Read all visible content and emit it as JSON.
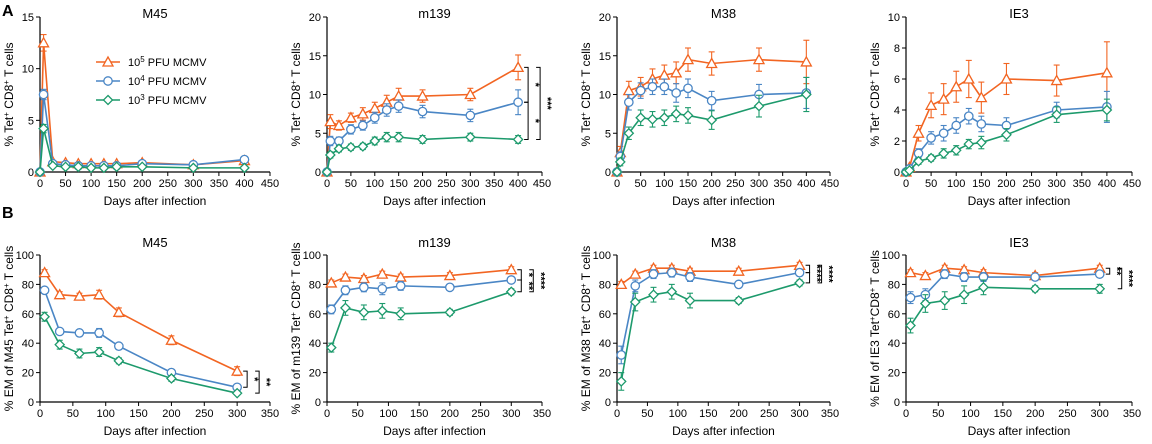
{
  "panel_labels": [
    "A",
    "B"
  ],
  "colors": {
    "high": "#f26522",
    "mid": "#4a86c5",
    "low": "#1d9a6c"
  },
  "legend": {
    "entries": [
      {
        "base": "10",
        "exp": "5",
        "suffix": " PFU MCMV",
        "series": "high",
        "marker": "triangle"
      },
      {
        "base": "10",
        "exp": "4",
        "suffix": " PFU MCMV",
        "series": "mid",
        "marker": "circle"
      },
      {
        "base": "10",
        "exp": "3",
        "suffix": " PFU MCMV",
        "series": "low",
        "marker": "diamond"
      }
    ]
  },
  "chart_data": [
    {
      "type": "line",
      "title": "M45",
      "xlabel": "Days after infection",
      "ylabel": {
        "pre": "% Tet",
        "sup1": "+",
        "mid": " CD8",
        "sup2": "+",
        "post": " T cells"
      },
      "xlim": [
        0,
        450
      ],
      "xticks": [
        0,
        50,
        100,
        150,
        200,
        250,
        300,
        350,
        400,
        450
      ],
      "ylim": [
        0,
        15
      ],
      "yticks": [
        0,
        5,
        10,
        15
      ],
      "categories": [
        0,
        7,
        25,
        50,
        75,
        100,
        125,
        150,
        200,
        300,
        400
      ],
      "series": [
        {
          "name": "10^5 PFU MCMV",
          "key": "high",
          "values": [
            0,
            12.5,
            1.0,
            0.9,
            0.8,
            0.8,
            0.8,
            0.8,
            0.9,
            0.7,
            1.1
          ],
          "errors": [
            0,
            0.8,
            0.1,
            0.1,
            0.1,
            0.1,
            0.1,
            0.1,
            0.1,
            0.1,
            0.1
          ]
        },
        {
          "name": "10^4 PFU MCMV",
          "key": "mid",
          "values": [
            0,
            7.5,
            0.8,
            0.7,
            0.6,
            0.6,
            0.6,
            0.6,
            0.8,
            0.7,
            1.2
          ],
          "errors": [
            0,
            0.5,
            0.1,
            0.1,
            0.1,
            0.1,
            0.1,
            0.1,
            0.1,
            0.1,
            0.1
          ]
        },
        {
          "name": "10^3 PFU MCMV",
          "key": "low",
          "values": [
            0,
            4.2,
            0.6,
            0.5,
            0.5,
            0.4,
            0.4,
            0.5,
            0.5,
            0.4,
            0.4
          ],
          "errors": [
            0,
            0.4,
            0.1,
            0.1,
            0.1,
            0.1,
            0.1,
            0.1,
            0.1,
            0.1,
            0.1
          ]
        }
      ],
      "significance": []
    },
    {
      "type": "line",
      "title": "m139",
      "xlabel": "Days after infection",
      "ylabel": {
        "pre": "% Tet",
        "sup1": "+",
        "mid": " CD8",
        "sup2": "+",
        "post": " T cells"
      },
      "xlim": [
        0,
        450
      ],
      "xticks": [
        0,
        50,
        100,
        150,
        200,
        250,
        300,
        350,
        400,
        450
      ],
      "ylim": [
        0,
        20
      ],
      "yticks": [
        0,
        5,
        10,
        15,
        20
      ],
      "categories": [
        0,
        7,
        25,
        50,
        75,
        100,
        125,
        150,
        200,
        300,
        400
      ],
      "series": [
        {
          "name": "10^5 PFU MCMV",
          "key": "high",
          "values": [
            0,
            6.5,
            6.0,
            7.0,
            7.5,
            8.2,
            9.0,
            9.8,
            9.8,
            10.0,
            13.5
          ],
          "errors": [
            0,
            0.9,
            0.6,
            0.6,
            0.8,
            0.8,
            0.9,
            1.0,
            0.8,
            0.8,
            1.6
          ]
        },
        {
          "name": "10^4 PFU MCMV",
          "key": "mid",
          "values": [
            0,
            4.0,
            4.0,
            5.5,
            6.0,
            7.0,
            8.0,
            8.5,
            7.8,
            7.3,
            9.0
          ],
          "errors": [
            0,
            0.6,
            0.5,
            0.6,
            0.6,
            0.7,
            0.8,
            0.8,
            0.8,
            0.8,
            1.6
          ]
        },
        {
          "name": "10^3 PFU MCMV",
          "key": "low",
          "values": [
            0,
            2.2,
            3.0,
            3.2,
            3.3,
            4.0,
            4.5,
            4.5,
            4.2,
            4.5,
            4.2
          ],
          "errors": [
            0,
            0.4,
            0.4,
            0.4,
            0.4,
            0.5,
            0.6,
            0.6,
            0.5,
            0.5,
            0.5
          ]
        }
      ],
      "significance": [
        {
          "from": "high",
          "to": "mid",
          "label": "*",
          "level": 0
        },
        {
          "from": "mid",
          "to": "low",
          "label": "*",
          "level": 0
        },
        {
          "from": "high",
          "to": "low",
          "label": "***",
          "level": 1
        }
      ]
    },
    {
      "type": "line",
      "title": "M38",
      "xlabel": "Days after infection",
      "ylabel": {
        "pre": "% Tet",
        "sup1": "+",
        "mid": " CD8",
        "sup2": "+",
        "post": " T cells"
      },
      "xlim": [
        0,
        450
      ],
      "xticks": [
        0,
        50,
        100,
        150,
        200,
        250,
        300,
        350,
        400,
        450
      ],
      "ylim": [
        0,
        20
      ],
      "yticks": [
        0,
        5,
        10,
        15,
        20
      ],
      "categories": [
        0,
        7,
        25,
        50,
        75,
        100,
        125,
        150,
        200,
        300,
        400
      ],
      "series": [
        {
          "name": "10^5 PFU MCMV",
          "key": "high",
          "values": [
            0,
            2.5,
            10.5,
            11.0,
            12.0,
            12.5,
            12.8,
            14.5,
            14.0,
            14.5,
            14.2
          ],
          "errors": [
            0,
            0.8,
            1.2,
            1.2,
            1.3,
            1.3,
            1.4,
            1.5,
            1.5,
            1.5,
            2.8
          ]
        },
        {
          "name": "10^4 PFU MCMV",
          "key": "mid",
          "values": [
            0,
            2.0,
            9.0,
            10.5,
            11.0,
            11.0,
            10.2,
            10.8,
            9.2,
            10.0,
            10.2
          ],
          "errors": [
            0,
            0.6,
            1.0,
            1.0,
            1.0,
            1.0,
            1.2,
            1.2,
            1.2,
            1.3,
            2.0
          ]
        },
        {
          "name": "10^3 PFU MCMV",
          "key": "low",
          "values": [
            0,
            1.3,
            5.0,
            7.0,
            6.8,
            7.0,
            7.5,
            7.3,
            6.7,
            8.5,
            10.0
          ],
          "errors": [
            0,
            0.5,
            0.8,
            1.0,
            1.0,
            1.0,
            1.0,
            1.0,
            1.2,
            1.4,
            2.2
          ]
        }
      ],
      "significance": []
    },
    {
      "type": "line",
      "title": "IE3",
      "xlabel": "Days after infection",
      "ylabel": {
        "pre": "% Tet",
        "sup1": "+",
        "mid": " CD8",
        "sup2": "+",
        "post": " T cells"
      },
      "xlim": [
        0,
        450
      ],
      "xticks": [
        0,
        50,
        100,
        150,
        200,
        250,
        300,
        350,
        400,
        450
      ],
      "ylim": [
        0,
        10
      ],
      "yticks": [
        0,
        2,
        4,
        6,
        8,
        10
      ],
      "categories": [
        0,
        7,
        25,
        50,
        75,
        100,
        125,
        150,
        200,
        300,
        400
      ],
      "series": [
        {
          "name": "10^5 PFU MCMV",
          "key": "high",
          "values": [
            0,
            0.3,
            2.5,
            4.3,
            4.7,
            5.5,
            6.0,
            4.8,
            6.0,
            5.9,
            6.4
          ],
          "errors": [
            0,
            0.1,
            0.5,
            0.8,
            1.0,
            1.0,
            1.2,
            1.0,
            1.0,
            1.0,
            2.0
          ]
        },
        {
          "name": "10^4 PFU MCMV",
          "key": "mid",
          "values": [
            0,
            0.2,
            1.2,
            2.2,
            2.5,
            3.0,
            3.6,
            3.1,
            3.0,
            4.0,
            4.2
          ],
          "errors": [
            0,
            0.1,
            0.3,
            0.4,
            0.5,
            0.5,
            0.5,
            0.5,
            0.5,
            0.5,
            1.0
          ]
        },
        {
          "name": "10^3 PFU MCMV",
          "key": "low",
          "values": [
            0,
            0.1,
            0.7,
            0.9,
            1.2,
            1.4,
            1.8,
            1.9,
            2.4,
            3.7,
            4.0
          ],
          "errors": [
            0,
            0.1,
            0.2,
            0.2,
            0.3,
            0.3,
            0.3,
            0.4,
            0.4,
            0.5,
            0.7
          ]
        }
      ],
      "significance": []
    },
    {
      "type": "line",
      "title": "M45",
      "xlabel": "Days after infection",
      "ylabel": {
        "pre": "% EM of M45 Tet",
        "sup1": "+",
        "mid": " CD8",
        "sup2": "+",
        "post": " T cells"
      },
      "xlim": [
        0,
        350
      ],
      "xticks": [
        0,
        50,
        100,
        150,
        200,
        250,
        300,
        350
      ],
      "ylim": [
        0,
        100
      ],
      "yticks": [
        0,
        20,
        40,
        60,
        80,
        100
      ],
      "categories": [
        7,
        30,
        60,
        90,
        120,
        200,
        300
      ],
      "series": [
        {
          "name": "10^5 PFU MCMV",
          "key": "high",
          "values": [
            88,
            73,
            72,
            73,
            61,
            42,
            21
          ],
          "errors": [
            2,
            2,
            2,
            3,
            3,
            3,
            3
          ]
        },
        {
          "name": "10^4 PFU MCMV",
          "key": "mid",
          "values": [
            76,
            48,
            47,
            47,
            38,
            20,
            10
          ],
          "errors": [
            2,
            2,
            2,
            3,
            2,
            2,
            2
          ]
        },
        {
          "name": "10^3 PFU MCMV",
          "key": "low",
          "values": [
            58,
            39,
            33,
            34,
            28,
            16,
            6
          ],
          "errors": [
            3,
            3,
            3,
            3,
            2,
            2,
            1
          ]
        }
      ],
      "significance": [
        {
          "from": "high",
          "to": "mid",
          "label": "*",
          "level": 0
        },
        {
          "from": "high",
          "to": "low",
          "label": "**",
          "level": 1
        }
      ]
    },
    {
      "type": "line",
      "title": "m139",
      "xlabel": "Days after infection",
      "ylabel": {
        "pre": "% EM of m139 Tet",
        "sup1": "+",
        "mid": " CD8",
        "sup2": "+",
        "post": " T cells"
      },
      "xlim": [
        0,
        350
      ],
      "xticks": [
        0,
        50,
        100,
        150,
        200,
        250,
        300,
        350
      ],
      "ylim": [
        0,
        100
      ],
      "yticks": [
        0,
        20,
        40,
        60,
        80,
        100
      ],
      "categories": [
        7,
        30,
        60,
        90,
        120,
        200,
        300
      ],
      "series": [
        {
          "name": "10^5 PFU MCMV",
          "key": "high",
          "values": [
            81,
            85,
            84,
            87,
            85,
            86,
            90
          ],
          "errors": [
            2,
            2,
            2,
            2,
            2,
            2,
            2
          ]
        },
        {
          "name": "10^4 PFU MCMV",
          "key": "mid",
          "values": [
            63,
            76,
            78,
            77,
            79,
            78,
            83
          ],
          "errors": [
            3,
            3,
            3,
            4,
            3,
            2,
            2
          ]
        },
        {
          "name": "10^3 PFU MCMV",
          "key": "low",
          "values": [
            37,
            64,
            61,
            62,
            60,
            61,
            75
          ],
          "errors": [
            3,
            5,
            5,
            5,
            4,
            2,
            2
          ]
        }
      ],
      "significance": [
        {
          "from": "high",
          "to": "mid",
          "label": "*",
          "level": 0
        },
        {
          "from": "mid",
          "to": "low",
          "label": "**",
          "level": 0
        },
        {
          "from": "high",
          "to": "low",
          "label": "****",
          "level": 1
        }
      ]
    },
    {
      "type": "line",
      "title": "M38",
      "xlabel": "Days after infection",
      "ylabel": {
        "pre": "% EM of M38 Tet",
        "sup1": "+",
        "mid": " CD8",
        "sup2": "+",
        "post": " T cells"
      },
      "xlim": [
        0,
        350
      ],
      "xticks": [
        0,
        50,
        100,
        150,
        200,
        250,
        300,
        350
      ],
      "ylim": [
        0,
        100
      ],
      "yticks": [
        0,
        20,
        40,
        60,
        80,
        100
      ],
      "categories": [
        7,
        30,
        60,
        90,
        120,
        200,
        300
      ],
      "series": [
        {
          "name": "10^5 PFU MCMV",
          "key": "high",
          "values": [
            80,
            87,
            91,
            91,
            89,
            89,
            93
          ],
          "errors": [
            2,
            2,
            2,
            2,
            2,
            2,
            2
          ]
        },
        {
          "name": "10^4 PFU MCMV",
          "key": "mid",
          "values": [
            32,
            79,
            87,
            88,
            85,
            80,
            88
          ],
          "errors": [
            6,
            4,
            3,
            3,
            3,
            2,
            2
          ]
        },
        {
          "name": "10^3 PFU MCMV",
          "key": "low",
          "values": [
            14,
            68,
            73,
            75,
            69,
            69,
            81
          ],
          "errors": [
            6,
            6,
            5,
            5,
            5,
            2,
            2
          ]
        }
      ],
      "significance": [
        {
          "from": "high",
          "to": "mid",
          "label": "**",
          "level": 0
        },
        {
          "from": "mid",
          "to": "low",
          "label": "**",
          "level": 0
        },
        {
          "from": "high",
          "to": "low",
          "label": "****",
          "level": 1
        }
      ]
    },
    {
      "type": "line",
      "title": "IE3",
      "xlabel": "Days after infection",
      "ylabel": {
        "pre": "% EM of IE3 Tet",
        "sup1": "+",
        "mid": "CD8",
        "sup2": "+",
        "post": " T cells"
      },
      "xlim": [
        0,
        350
      ],
      "xticks": [
        0,
        50,
        100,
        150,
        200,
        250,
        300,
        350
      ],
      "ylim": [
        0,
        100
      ],
      "yticks": [
        0,
        20,
        40,
        60,
        80,
        100
      ],
      "categories": [
        7,
        30,
        60,
        90,
        120,
        200,
        300
      ],
      "series": [
        {
          "name": "10^5 PFU MCMV",
          "key": "high",
          "values": [
            88,
            86,
            91,
            90,
            88,
            86,
            91
          ],
          "errors": [
            2,
            2,
            2,
            2,
            2,
            2,
            2
          ]
        },
        {
          "name": "10^4 PFU MCMV",
          "key": "mid",
          "values": [
            71,
            73,
            87,
            85,
            85,
            85,
            87
          ],
          "errors": [
            4,
            4,
            3,
            3,
            3,
            2,
            2
          ]
        },
        {
          "name": "10^3 PFU MCMV",
          "key": "low",
          "values": [
            52,
            67,
            69,
            73,
            78,
            77,
            77
          ],
          "errors": [
            5,
            6,
            6,
            6,
            5,
            2,
            3
          ]
        }
      ],
      "significance": [
        {
          "from": "high",
          "to": "mid",
          "label": "**",
          "level": 0
        },
        {
          "from": "high",
          "to": "low",
          "label": "****",
          "level": 1
        }
      ]
    }
  ]
}
